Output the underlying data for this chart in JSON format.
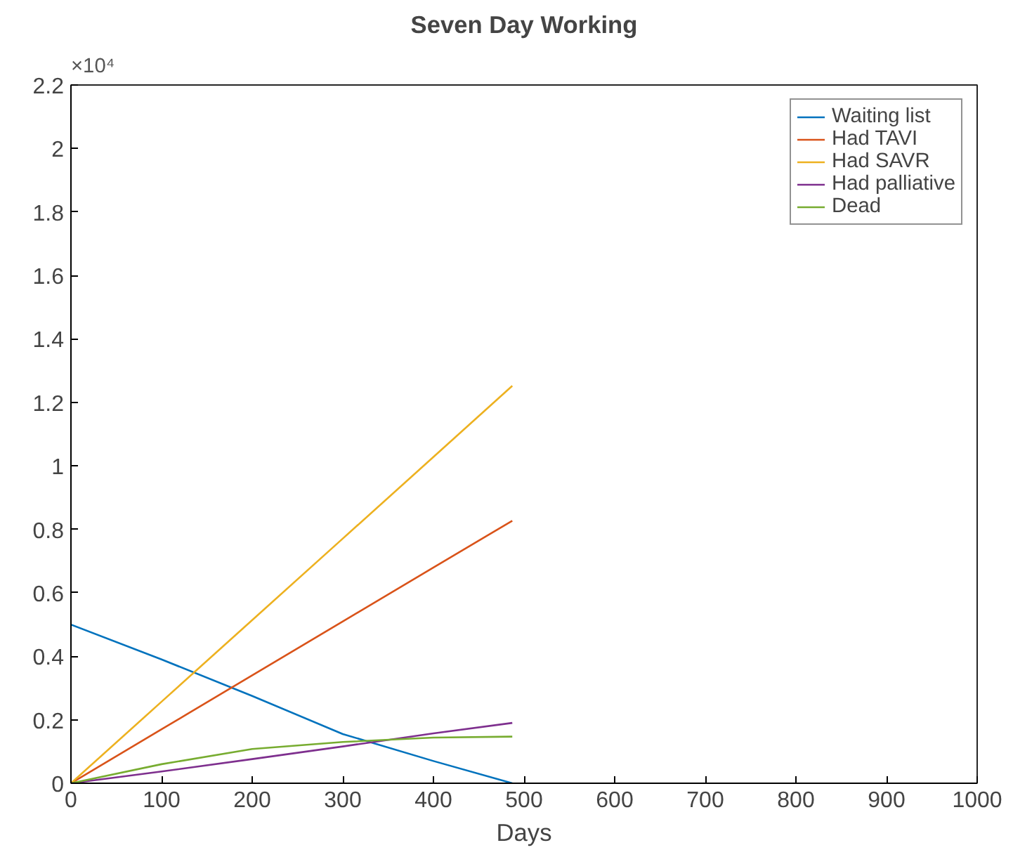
{
  "chart_data": {
    "type": "line",
    "title": "Seven Day Working",
    "xlabel": "Days",
    "annotations": [
      "×10⁴"
    ],
    "xlim": [
      0,
      1000
    ],
    "xticks": [
      0,
      100,
      200,
      300,
      400,
      500,
      600,
      700,
      800,
      900,
      1000
    ],
    "ylim": [
      0,
      2.2
    ],
    "yticks": [
      0,
      0.2,
      0.4,
      0.6,
      0.8,
      1,
      1.2,
      1.4,
      1.6,
      1.8,
      2,
      2.2
    ],
    "grid": false,
    "legend": "top right",
    "x": [
      0,
      100,
      200,
      300,
      400,
      487
    ],
    "series": [
      {
        "name": "Waiting list",
        "color": "#0072bd",
        "values": [
          0.5,
          0.39,
          0.275,
          0.155,
          0.07,
          0
        ]
      },
      {
        "name": "Had TAVI",
        "color": "#d95319",
        "values": [
          0,
          0.17,
          0.34,
          0.51,
          0.68,
          0.827
        ]
      },
      {
        "name": "Had SAVR",
        "color": "#edb120",
        "values": [
          0,
          0.257,
          0.514,
          0.771,
          1.028,
          1.252
        ]
      },
      {
        "name": "Had palliative",
        "color": "#7e2f8e",
        "values": [
          0,
          0.037,
          0.076,
          0.116,
          0.157,
          0.19
        ]
      },
      {
        "name": "Dead",
        "color": "#77ac30",
        "values": [
          0,
          0.06,
          0.108,
          0.13,
          0.144,
          0.147
        ]
      }
    ]
  }
}
